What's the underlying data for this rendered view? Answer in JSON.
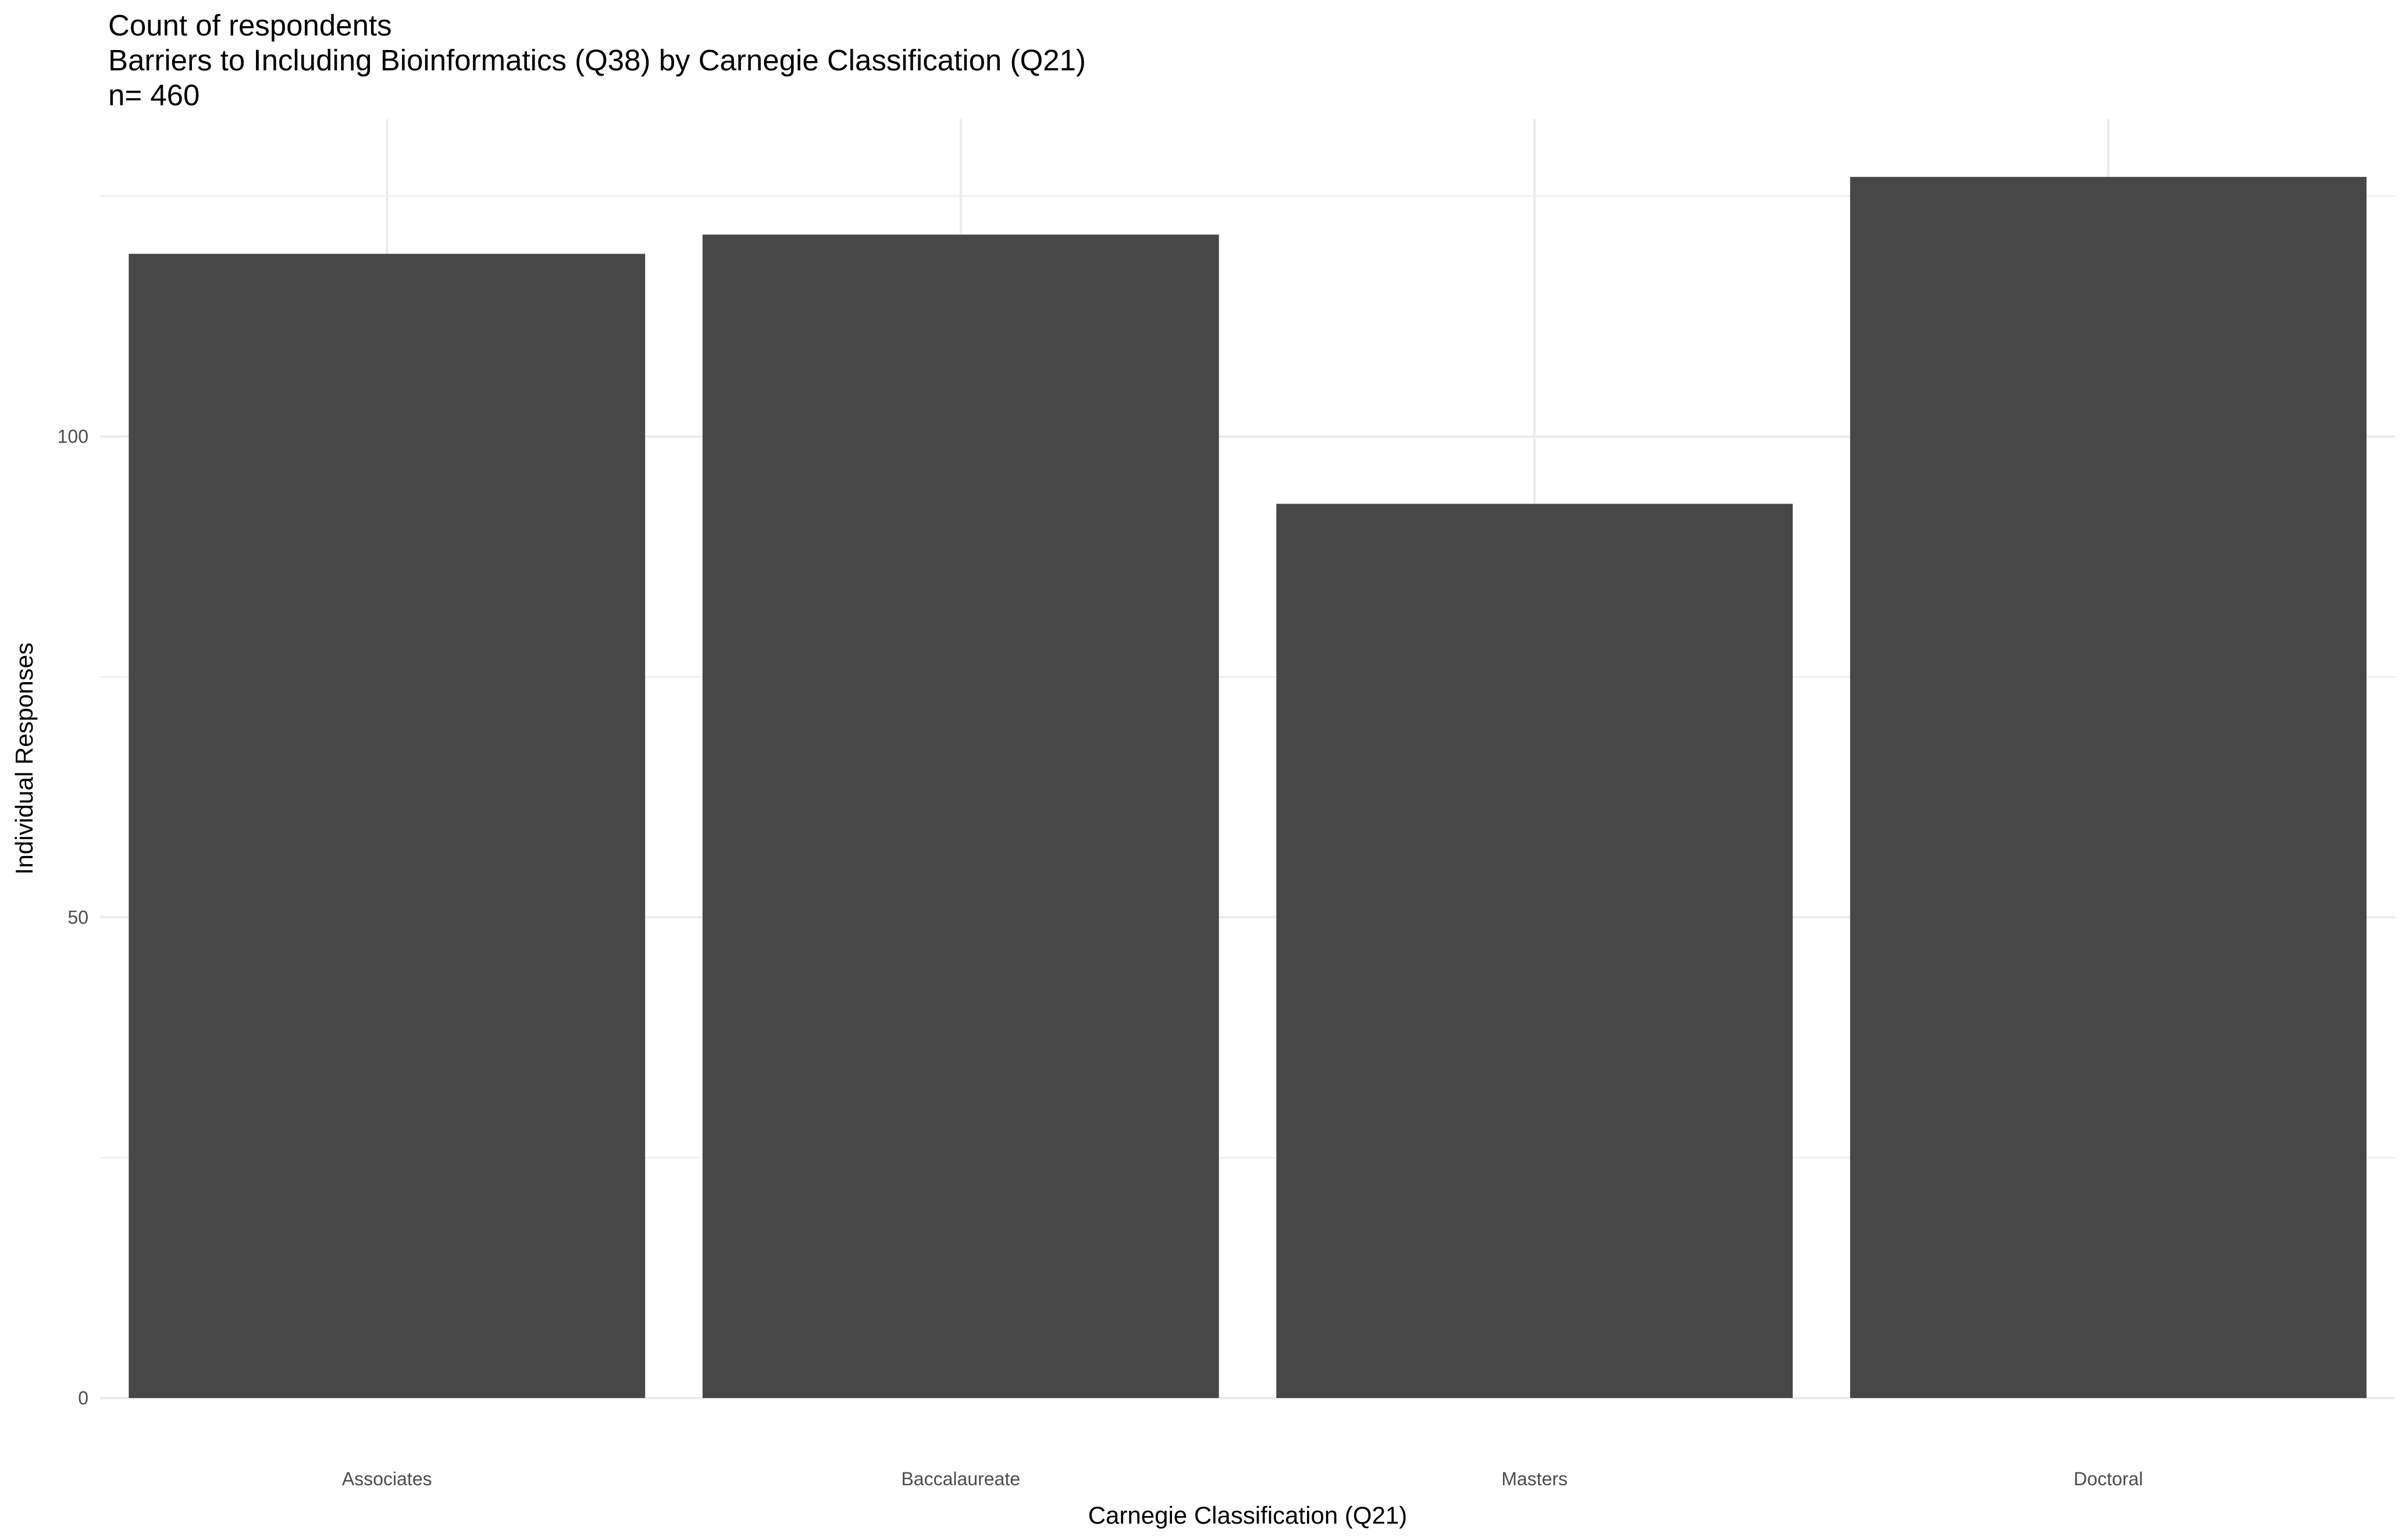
{
  "chart_data": {
    "type": "bar",
    "title": "Count of respondents",
    "subtitle": "Barriers to Including Bioinformatics (Q38) by Carnegie Classification (Q21)",
    "caption": "n= 460",
    "xlabel": "Carnegie Classification (Q21)",
    "ylabel": "Individual Responses",
    "categories": [
      "Associates",
      "Baccalaureate",
      "Masters",
      "Doctoral"
    ],
    "values": [
      119,
      121,
      93,
      127
    ],
    "ylim": [
      0,
      133
    ],
    "yticks": [
      0,
      50,
      100
    ],
    "grid": true,
    "legend": "none",
    "colors": {
      "bar": "#474747",
      "grid": "#ebebeb",
      "background": "#ffffff"
    }
  }
}
